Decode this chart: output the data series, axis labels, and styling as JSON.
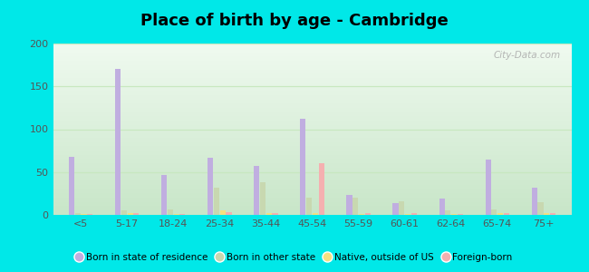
{
  "title": "Place of birth by age - Cambridge",
  "categories": [
    "<5",
    "5-17",
    "18-24",
    "25-34",
    "35-44",
    "45-54",
    "55-59",
    "60-61",
    "62-64",
    "65-74",
    "75+"
  ],
  "series": {
    "Born in state of residence": [
      68,
      170,
      47,
      67,
      57,
      112,
      23,
      14,
      19,
      65,
      32
    ],
    "Born in other state": [
      2,
      5,
      6,
      32,
      38,
      20,
      20,
      16,
      5,
      6,
      15
    ],
    "Native, outside of US": [
      1,
      2,
      1,
      5,
      2,
      2,
      1,
      1,
      1,
      2,
      2
    ],
    "Foreign-born": [
      1,
      2,
      1,
      3,
      2,
      60,
      2,
      2,
      1,
      2,
      2
    ]
  },
  "colors": {
    "Born in state of residence": "#c0aee0",
    "Born in other state": "#c8d8b0",
    "Native, outside of US": "#f5e080",
    "Foreign-born": "#f5b0b0"
  },
  "ylim": [
    0,
    200
  ],
  "yticks": [
    0,
    50,
    100,
    150,
    200
  ],
  "bar_width": 0.12,
  "bg_top": "#f0faf0",
  "bg_bottom": "#d8f0d0",
  "figure_background": "#00e8e8",
  "grid_color": "#c8e8c0",
  "title_fontsize": 13,
  "watermark": "City-Data.com"
}
